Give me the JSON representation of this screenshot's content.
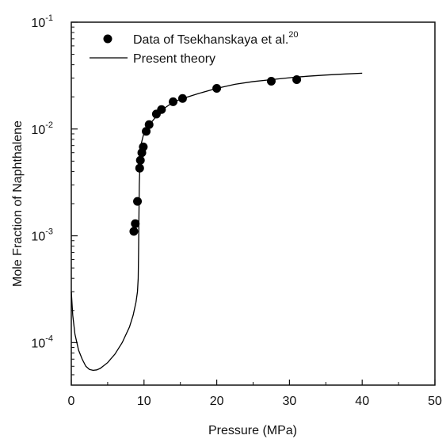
{
  "chart_data": {
    "type": "scatter",
    "xlabel": "Pressure (MPa)",
    "ylabel": "Mole Fraction of Naphthalene",
    "xlim": [
      0,
      50
    ],
    "ylim": [
      4e-05,
      0.1
    ],
    "yscale": "log",
    "grid": false,
    "legend_position": "top-left",
    "x_ticks": [
      "0",
      "10",
      "20",
      "30",
      "40",
      "50"
    ],
    "y_ticks": [
      {
        "base": "10",
        "exp": "-4",
        "value": 0.0001
      },
      {
        "base": "10",
        "exp": "-3",
        "value": 0.001
      },
      {
        "base": "10",
        "exp": "-2",
        "value": 0.01
      },
      {
        "base": "10",
        "exp": "-1",
        "value": 0.1
      }
    ],
    "series": [
      {
        "name": "Data of Tsekhanskaya et al.",
        "name_sup": "20",
        "kind": "scatter",
        "color": "#000000",
        "points": [
          [
            8.6,
            0.0011
          ],
          [
            8.8,
            0.0013
          ],
          [
            9.1,
            0.0021
          ],
          [
            9.4,
            0.0043
          ],
          [
            9.5,
            0.0051
          ],
          [
            9.7,
            0.006
          ],
          [
            9.9,
            0.0068
          ],
          [
            10.3,
            0.0095
          ],
          [
            10.7,
            0.011
          ],
          [
            11.7,
            0.0138
          ],
          [
            12.4,
            0.0152
          ],
          [
            14.0,
            0.018
          ],
          [
            15.3,
            0.0193
          ],
          [
            20.0,
            0.024
          ],
          [
            27.5,
            0.028
          ],
          [
            31.0,
            0.029
          ]
        ]
      },
      {
        "name": "Present theory",
        "kind": "line",
        "color": "#000000",
        "points": [
          [
            0.0,
            0.0003
          ],
          [
            0.2,
            0.00018
          ],
          [
            0.5,
            0.00012
          ],
          [
            1.0,
            8.5e-05
          ],
          [
            1.5,
            7e-05
          ],
          [
            2.0,
            6e-05
          ],
          [
            2.5,
            5.6e-05
          ],
          [
            3.0,
            5.5e-05
          ],
          [
            3.5,
            5.55e-05
          ],
          [
            4.0,
            5.75e-05
          ],
          [
            5.0,
            6.5e-05
          ],
          [
            6.0,
            7.8e-05
          ],
          [
            7.0,
            0.0001
          ],
          [
            8.0,
            0.00014
          ],
          [
            8.5,
            0.00018
          ],
          [
            8.9,
            0.00024
          ],
          [
            9.1,
            0.0003
          ],
          [
            9.2,
            0.0004
          ],
          [
            9.25,
            0.0007
          ],
          [
            9.3,
            0.0015
          ],
          [
            9.35,
            0.003
          ],
          [
            9.45,
            0.005
          ],
          [
            9.6,
            0.0072
          ],
          [
            9.9,
            0.0087
          ],
          [
            10.3,
            0.0097
          ],
          [
            11.0,
            0.0115
          ],
          [
            12.0,
            0.014
          ],
          [
            13.0,
            0.016
          ],
          [
            14.0,
            0.0178
          ],
          [
            15.0,
            0.019
          ],
          [
            17.5,
            0.0215
          ],
          [
            20.0,
            0.024
          ],
          [
            22.5,
            0.0262
          ],
          [
            25.0,
            0.0278
          ],
          [
            27.5,
            0.029
          ],
          [
            30.0,
            0.0302
          ],
          [
            32.5,
            0.0312
          ],
          [
            35.0,
            0.032
          ],
          [
            37.5,
            0.0327
          ],
          [
            40.0,
            0.0333
          ]
        ]
      }
    ]
  }
}
